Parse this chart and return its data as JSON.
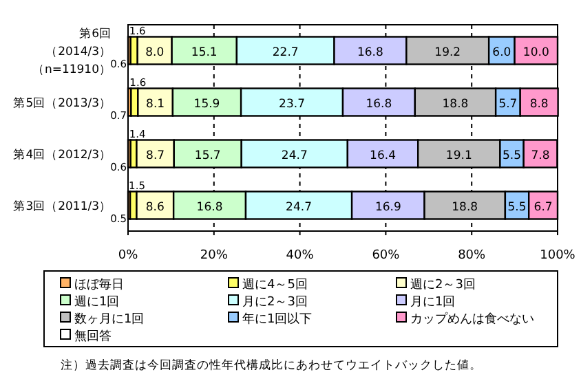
{
  "chart_data": {
    "type": "bar",
    "orientation": "horizontal",
    "stacked": true,
    "categories": [
      "第6回（2014/3）（n=11910）",
      "第5回（2013/3）",
      "第4回（2012/3）",
      "第3回（2011/3）"
    ],
    "series": [
      {
        "name": "ほぼ毎日",
        "color": "#ffb366",
        "values": [
          0.6,
          0.7,
          0.6,
          0.5
        ],
        "value_labels": [
          "0.6",
          "0.7",
          "0.6",
          "0.5"
        ]
      },
      {
        "name": "週に4～5回",
        "color": "#ffff66",
        "values": [
          1.6,
          1.6,
          1.4,
          1.5
        ],
        "value_labels": [
          "1.6",
          "1.6",
          "1.4",
          "1.5"
        ]
      },
      {
        "name": "週に2～3回",
        "color": "#ffffcc",
        "values": [
          8.0,
          8.1,
          8.7,
          8.6
        ],
        "value_labels": [
          "8.0",
          "8.1",
          "8.7",
          "8.6"
        ]
      },
      {
        "name": "週に1回",
        "color": "#ccffcc",
        "values": [
          15.1,
          15.9,
          15.7,
          16.8
        ],
        "value_labels": [
          "15.1",
          "15.9",
          "15.7",
          "16.8"
        ]
      },
      {
        "name": "月に2～3回",
        "color": "#ccffff",
        "values": [
          22.7,
          23.7,
          24.7,
          24.7
        ],
        "value_labels": [
          "22.7",
          "23.7",
          "24.7",
          "24.7"
        ]
      },
      {
        "name": "月に1回",
        "color": "#ccccff",
        "values": [
          16.8,
          16.8,
          16.4,
          16.9
        ],
        "value_labels": [
          "16.8",
          "16.8",
          "16.4",
          "16.9"
        ]
      },
      {
        "name": "数ヶ月に1回",
        "color": "#c0c0c0",
        "values": [
          19.2,
          18.8,
          19.1,
          18.8
        ],
        "value_labels": [
          "19.2",
          "18.8",
          "19.1",
          "18.8"
        ]
      },
      {
        "name": "年に1回以下",
        "color": "#99ccff",
        "values": [
          6.0,
          5.7,
          5.5,
          5.5
        ],
        "value_labels": [
          "6.0",
          "5.7",
          "5.5",
          "5.5"
        ]
      },
      {
        "name": "カップめんは食べない",
        "color": "#ff99cc",
        "values": [
          10.0,
          8.8,
          7.8,
          6.7
        ],
        "value_labels": [
          "10.0",
          "8.8",
          "7.8",
          "6.7"
        ]
      },
      {
        "name": "無回答",
        "color": "#ffffff",
        "values": [
          null,
          null,
          null,
          null
        ]
      }
    ],
    "xlim": [
      0,
      100
    ],
    "xticks": [
      {
        "value": 0,
        "label": "0%"
      },
      {
        "value": 20,
        "label": "20%"
      },
      {
        "value": 40,
        "label": "40%"
      },
      {
        "value": 60,
        "label": "60%"
      },
      {
        "value": 80,
        "label": "80%"
      },
      {
        "value": 100,
        "label": "100%"
      }
    ],
    "grid": "x",
    "legend": "bottom",
    "annotations": [
      "注）過去調査は今回調査の性年代構成比にあわせてウエイトバックした値。"
    ]
  }
}
